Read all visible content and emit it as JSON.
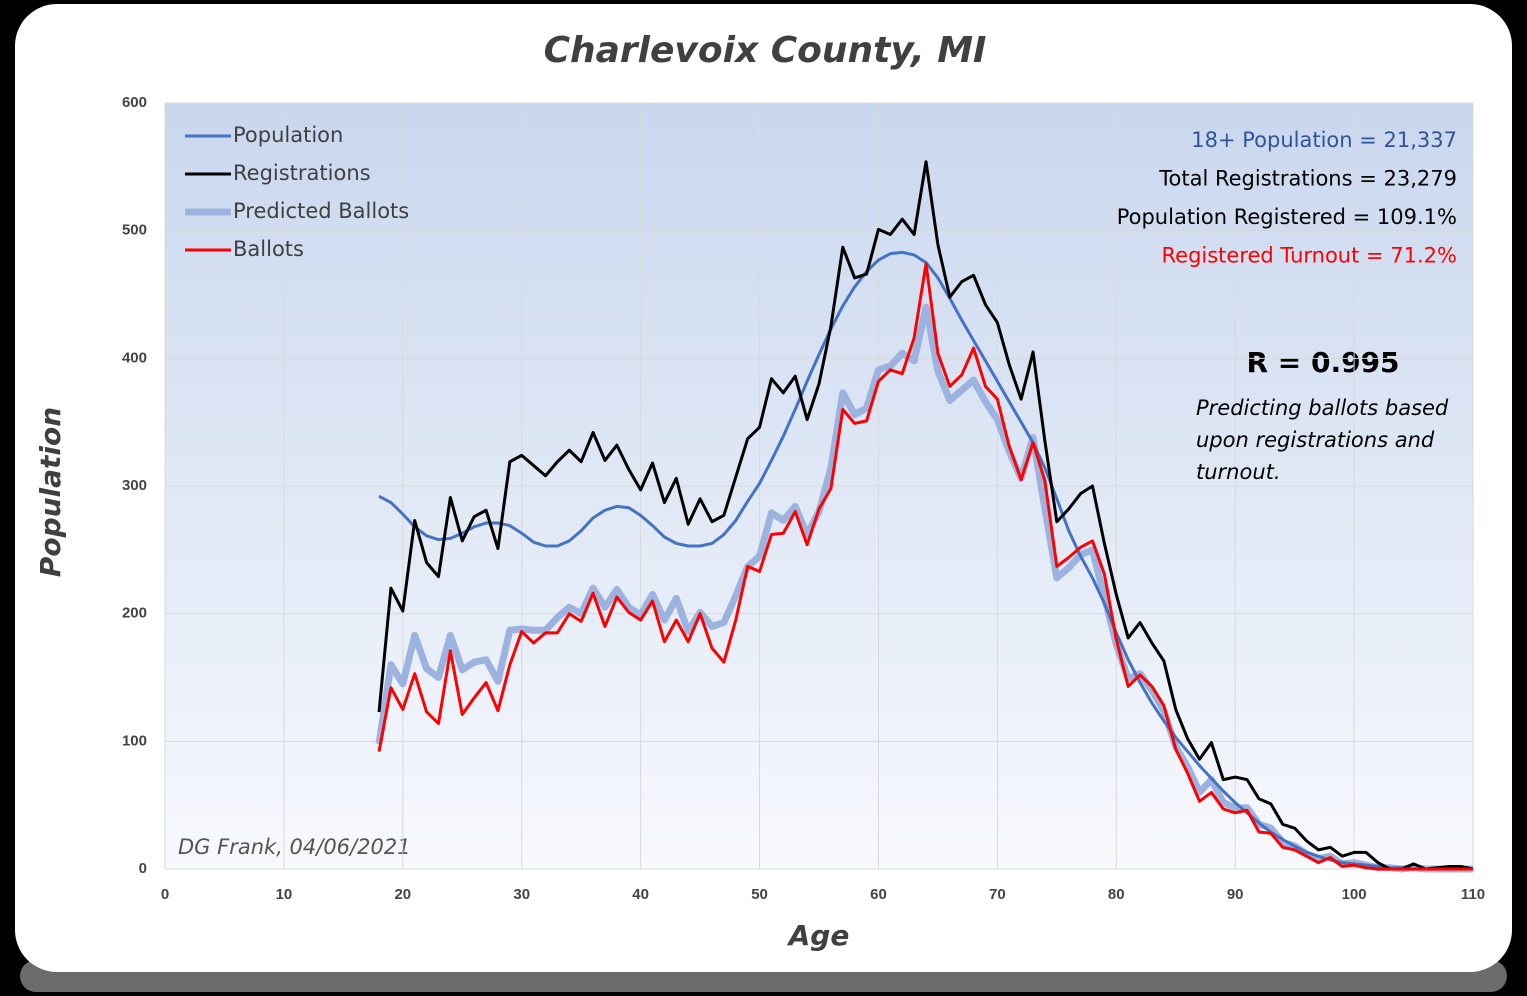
{
  "chart_data": {
    "type": "line",
    "title": "Charlevoix County, MI",
    "x_label": "Age",
    "y_label": "Population",
    "x": [
      18,
      19,
      20,
      21,
      22,
      23,
      24,
      25,
      26,
      27,
      28,
      29,
      30,
      31,
      32,
      33,
      34,
      35,
      36,
      37,
      38,
      39,
      40,
      41,
      42,
      43,
      44,
      45,
      46,
      47,
      48,
      49,
      50,
      51,
      52,
      53,
      54,
      55,
      56,
      57,
      58,
      59,
      60,
      61,
      62,
      63,
      64,
      65,
      66,
      67,
      68,
      69,
      70,
      71,
      72,
      73,
      74,
      75,
      76,
      77,
      78,
      79,
      80,
      81,
      82,
      83,
      84,
      85,
      86,
      87,
      88,
      89,
      90,
      91,
      92,
      93,
      94,
      95,
      96,
      97,
      98,
      99,
      100,
      101,
      102,
      103,
      104,
      105,
      106,
      107,
      108,
      109,
      110
    ],
    "series": [
      {
        "name": "Population",
        "color": "#4472c4",
        "line_width": 3,
        "values": [
          292,
          287,
          278,
          268,
          261,
          258,
          259,
          263,
          268,
          271,
          271,
          269,
          263,
          256,
          253,
          253,
          257,
          265,
          275,
          281,
          284,
          283,
          277,
          269,
          260,
          255,
          253,
          253,
          255,
          262,
          273,
          288,
          302,
          320,
          339,
          360,
          382,
          403,
          423,
          441,
          456,
          468,
          477,
          482,
          483,
          481,
          475,
          463,
          447,
          430,
          414,
          398,
          382,
          366,
          350,
          334,
          314,
          290,
          265,
          245,
          228,
          208,
          185,
          164,
          146,
          130,
          116,
          103,
          92,
          81,
          71,
          61,
          52,
          44,
          36,
          29,
          23,
          18,
          13,
          10,
          7,
          5,
          4,
          3,
          2,
          1,
          1,
          0,
          0,
          0,
          0,
          0,
          0
        ]
      },
      {
        "name": "Registrations",
        "color": "#000000",
        "line_width": 3,
        "values": [
          123,
          220,
          202,
          273,
          240,
          229,
          291,
          257,
          276,
          281,
          251,
          319,
          324,
          316,
          308,
          319,
          328,
          319,
          342,
          320,
          332,
          313,
          297,
          318,
          287,
          306,
          270,
          290,
          272,
          277,
          307,
          337,
          346,
          384,
          373,
          386,
          352,
          380,
          425,
          487,
          463,
          466,
          501,
          497,
          509,
          497,
          554,
          489,
          448,
          460,
          465,
          442,
          428,
          395,
          368,
          405,
          335,
          272,
          282,
          294,
          300,
          255,
          215,
          181,
          193,
          177,
          163,
          125,
          102,
          86,
          99,
          70,
          72,
          70,
          55,
          51,
          35,
          32,
          22,
          15,
          17,
          10,
          13,
          13,
          5,
          0,
          0,
          4,
          0,
          1,
          2,
          2,
          0
        ]
      },
      {
        "name": "Predicted Ballots",
        "color": "#9db3df",
        "line_width": 7,
        "values": [
          98,
          160,
          145,
          183,
          157,
          150,
          183,
          156,
          162,
          164,
          147,
          187,
          188,
          187,
          187,
          197,
          205,
          200,
          220,
          205,
          219,
          205,
          199,
          215,
          195,
          212,
          186,
          201,
          190,
          193,
          214,
          237,
          245,
          279,
          273,
          284,
          262,
          280,
          314,
          373,
          356,
          361,
          391,
          394,
          404,
          398,
          440,
          390,
          367,
          375,
          383,
          366,
          352,
          327,
          306,
          338,
          282,
          228,
          236,
          246,
          250,
          213,
          176,
          149,
          153,
          140,
          124,
          96,
          80,
          60,
          70,
          52,
          48,
          48,
          35,
          32,
          21,
          18,
          12,
          8,
          10,
          4,
          5,
          3,
          1,
          1,
          0,
          1,
          0,
          0,
          0,
          0,
          0
        ]
      },
      {
        "name": "Ballots",
        "color": "#ff0000",
        "line_width": 3,
        "values": [
          92,
          142,
          125,
          153,
          123,
          114,
          171,
          121,
          134,
          146,
          124,
          160,
          186,
          177,
          185,
          185,
          200,
          194,
          216,
          190,
          213,
          201,
          195,
          210,
          178,
          195,
          178,
          200,
          173,
          162,
          195,
          237,
          233,
          262,
          263,
          280,
          254,
          282,
          298,
          360,
          349,
          351,
          382,
          391,
          388,
          416,
          474,
          404,
          378,
          387,
          408,
          378,
          368,
          331,
          305,
          334,
          304,
          237,
          244,
          252,
          257,
          231,
          180,
          143,
          152,
          143,
          128,
          94,
          75,
          53,
          60,
          47,
          44,
          46,
          29,
          28,
          17,
          15,
          10,
          5,
          9,
          2,
          3,
          1,
          0,
          0,
          0,
          0,
          0,
          0,
          0,
          0,
          0
        ]
      }
    ],
    "draw_order": [
      2,
      0,
      1,
      3
    ],
    "xlim": [
      0,
      110
    ],
    "xticks": [
      0,
      10,
      20,
      30,
      40,
      50,
      60,
      70,
      80,
      90,
      100,
      110
    ],
    "ylim": [
      0,
      600
    ],
    "yticks": [
      0,
      100,
      200,
      300,
      400,
      500,
      600
    ],
    "grid": true,
    "legend": "upper left",
    "annotations": [
      {
        "text": "18+ Population = 21,337",
        "color": "#2f5597"
      },
      {
        "text": "Total Registrations = 23,279",
        "color": "#000000"
      },
      {
        "text": "Population Registered = 109.1%",
        "color": "#000000"
      },
      {
        "text": "Registered Turnout = 71.2%",
        "color": "#ff0000"
      }
    ],
    "r_value": "R = 0.995",
    "note": [
      "Predicting ballots based",
      "upon registrations and",
      "turnout."
    ],
    "credit": "DG Frank, 04/06/2021"
  }
}
